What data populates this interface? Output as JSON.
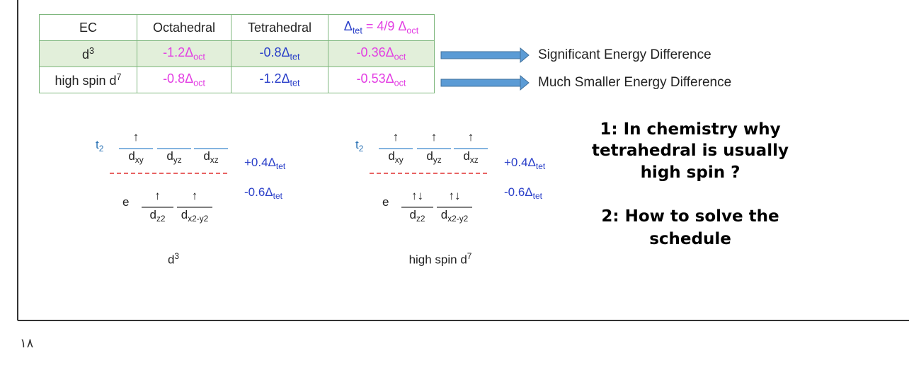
{
  "table": {
    "header": [
      {
        "parts": [
          {
            "text": "EC"
          }
        ]
      },
      {
        "parts": [
          {
            "text": "Octahedral"
          }
        ]
      },
      {
        "parts": [
          {
            "text": "Tetrahedral"
          }
        ]
      },
      {
        "parts": [
          {
            "text": "Δ",
            "color": "#2a3fc9"
          },
          {
            "sub": "tet",
            "color": "#2a3fc9"
          },
          {
            "text": " = 4/9 Δ",
            "color": "#e33ee3"
          },
          {
            "sub": "oct",
            "color": "#e33ee3"
          }
        ]
      }
    ],
    "rows": [
      {
        "fill": "#e2efda",
        "cells": [
          {
            "parts": [
              {
                "text": "d"
              },
              {
                "sup": "3"
              }
            ]
          },
          {
            "parts": [
              {
                "text": "-1.2Δ",
                "color": "#e33ee3"
              },
              {
                "sub": "oct",
                "color": "#e33ee3"
              }
            ]
          },
          {
            "parts": [
              {
                "text": "-0.8Δ",
                "color": "#2a3fc9"
              },
              {
                "sub": "tet",
                "color": "#2a3fc9"
              }
            ]
          },
          {
            "parts": [
              {
                "text": "-0.36Δ",
                "color": "#e33ee3"
              },
              {
                "sub": "oct",
                "color": "#e33ee3"
              }
            ]
          }
        ]
      },
      {
        "fill": "#ffffff",
        "cells": [
          {
            "parts": [
              {
                "text": "high spin d"
              },
              {
                "sup": "7"
              }
            ]
          },
          {
            "parts": [
              {
                "text": "-0.8Δ",
                "color": "#e33ee3"
              },
              {
                "sub": "oct",
                "color": "#e33ee3"
              }
            ]
          },
          {
            "parts": [
              {
                "text": "-1.2Δ",
                "color": "#2a3fc9"
              },
              {
                "sub": "tet",
                "color": "#2a3fc9"
              }
            ]
          },
          {
            "parts": [
              {
                "text": "-0.53Δ",
                "color": "#e33ee3"
              },
              {
                "sub": "oct",
                "color": "#e33ee3"
              }
            ]
          }
        ]
      }
    ]
  },
  "arrow_notes": [
    "Significant Energy Difference",
    "Much Smaller Energy Difference"
  ],
  "diagrams": [
    {
      "t2_label": [
        {
          "text": "t"
        },
        {
          "sub": "2"
        }
      ],
      "t2_orbitals": [
        {
          "electrons": "↑",
          "label": [
            {
              "text": "d"
            },
            {
              "sub": "xy"
            }
          ]
        },
        {
          "label": [
            {
              "text": "d"
            },
            {
              "sub": "yz"
            }
          ]
        },
        {
          "label": [
            {
              "text": "d"
            },
            {
              "sub": "xz"
            }
          ]
        }
      ],
      "t2_energy": [
        {
          "text": "+0.4Δ"
        },
        {
          "sub": "tet"
        }
      ],
      "e_label": "e",
      "e_orbitals": [
        {
          "electrons": "↑",
          "label": [
            {
              "text": "d"
            },
            {
              "sub": "z2"
            }
          ]
        },
        {
          "electrons": "↑",
          "label": [
            {
              "text": "d"
            },
            {
              "sub": "x2-y2"
            }
          ]
        }
      ],
      "e_energy": [
        {
          "text": "-0.6Δ"
        },
        {
          "sub": "tet"
        }
      ],
      "caption": [
        {
          "text": "d"
        },
        {
          "sup": "3"
        }
      ]
    },
    {
      "t2_label": [
        {
          "text": "t"
        },
        {
          "sub": "2"
        }
      ],
      "t2_orbitals": [
        {
          "electrons": "↑",
          "label": [
            {
              "text": "d"
            },
            {
              "sub": "xy"
            }
          ]
        },
        {
          "electrons": "↑",
          "label": [
            {
              "text": "d"
            },
            {
              "sub": "yz"
            }
          ]
        },
        {
          "electrons": "↑",
          "label": [
            {
              "text": "d"
            },
            {
              "sub": "xz"
            }
          ]
        }
      ],
      "t2_energy": [
        {
          "text": "+0.4Δ"
        },
        {
          "sub": "tet"
        }
      ],
      "e_label": "e",
      "e_orbitals": [
        {
          "electrons": "↑↓",
          "label": [
            {
              "text": "d"
            },
            {
              "sub": "z2"
            }
          ]
        },
        {
          "electrons": "↑↓",
          "label": [
            {
              "text": "d"
            },
            {
              "sub": "x2-y2"
            }
          ]
        }
      ],
      "e_energy": [
        {
          "text": "-0.6Δ"
        },
        {
          "sub": "tet"
        }
      ],
      "caption": [
        {
          "text": "high spin d"
        },
        {
          "sup": "7"
        }
      ]
    }
  ],
  "questions": [
    "1: In chemistry why",
    "tetrahedral is usually",
    "high spin ?",
    "2: How to solve the",
    "schedule"
  ],
  "page_number": "١٨"
}
